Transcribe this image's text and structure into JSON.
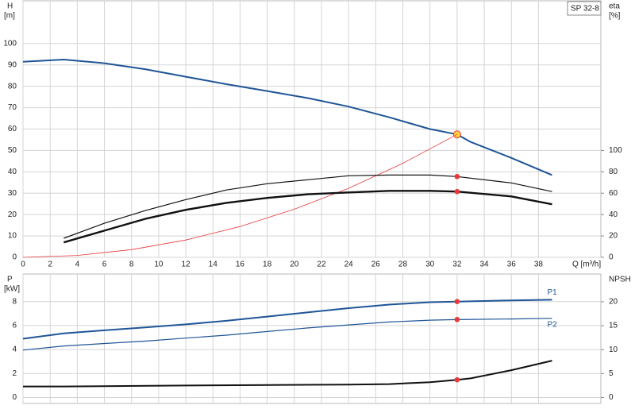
{
  "chart_data": [
    {
      "type": "line",
      "title": "SP 32-8",
      "ylabel": "H",
      "ylabel_unit": "[m]",
      "y2label": "eta",
      "y2label_unit": "[%]",
      "xlabel": "Q [m³/h]",
      "xlim": [
        0,
        42.6
      ],
      "xticks": [
        0,
        2,
        4,
        6,
        8,
        10,
        12,
        14,
        16,
        18,
        20,
        22,
        24,
        26,
        28,
        30,
        32,
        34,
        36,
        38
      ],
      "ylim": [
        0,
        120
      ],
      "yticks": [
        0,
        10,
        20,
        30,
        40,
        50,
        60,
        70,
        80,
        90,
        100
      ],
      "y2lim": [
        0,
        240
      ],
      "y2ticks": [
        0,
        20,
        40,
        60,
        80,
        100
      ],
      "grid": true,
      "duty_x": 32,
      "series": [
        {
          "color": "#1f5596",
          "width": 2,
          "marker": "operating",
          "x": [
            0,
            3,
            6,
            9,
            12,
            15,
            18,
            21,
            24,
            27,
            30,
            32,
            33,
            36,
            39
          ],
          "values": [
            91.5,
            92.5,
            90.8,
            88,
            84.5,
            81,
            77.8,
            74.5,
            70.5,
            65.5,
            60,
            57.5,
            54,
            46.5,
            38.5
          ]
        },
        {
          "color": "#e8383a",
          "width": 0.8,
          "x": [
            0,
            4,
            8,
            12,
            16,
            20,
            24,
            28,
            32
          ],
          "values": [
            0,
            0.9,
            3.6,
            8.1,
            14.4,
            22.5,
            32.3,
            44,
            57.5
          ]
        },
        {
          "color": "#111111",
          "width": 1.2,
          "axis": "y2",
          "marker": "dot",
          "x": [
            3,
            6,
            9,
            12,
            15,
            18,
            21,
            24,
            27,
            30,
            32,
            36,
            39
          ],
          "values": [
            17.8,
            31.9,
            43.7,
            54,
            63,
            68.9,
            72.6,
            76.3,
            77,
            77,
            75.6,
            69.6,
            61.5
          ]
        },
        {
          "color": "#111111",
          "width": 2.4,
          "axis": "y2",
          "marker": "dot",
          "x": [
            3,
            6,
            9,
            12,
            15,
            18,
            21,
            24,
            27,
            30,
            32,
            36,
            39
          ],
          "values": [
            14,
            25,
            36,
            44.4,
            51,
            55.6,
            59,
            60.7,
            62.2,
            62.2,
            61.5,
            57,
            49.6
          ]
        }
      ]
    },
    {
      "type": "line",
      "ylabel": "P",
      "ylabel_unit": "[kW]",
      "y2label": "NPSH",
      "xlim": [
        0,
        42.6
      ],
      "xticks": [
        0,
        2,
        4,
        6,
        8,
        10,
        12,
        14,
        16,
        18,
        20,
        22,
        24,
        26,
        28,
        30,
        32,
        34,
        36,
        38
      ],
      "xtick_labels": false,
      "ylim": [
        -0.5,
        10.3
      ],
      "yticks": [
        0,
        2,
        4,
        6,
        8
      ],
      "y2lim": [
        -1.25,
        25.8
      ],
      "y2ticks": [
        0,
        5,
        10,
        15,
        20
      ],
      "grid": true,
      "duty_x": 32,
      "series": [
        {
          "name": "P1",
          "color": "#1f5596",
          "width": 2,
          "marker": "dot",
          "x": [
            0,
            3,
            6,
            9,
            12,
            15,
            18,
            21,
            24,
            27,
            30,
            32,
            36,
            39
          ],
          "values": [
            4.9,
            5.35,
            5.6,
            5.85,
            6.1,
            6.4,
            6.75,
            7.1,
            7.45,
            7.75,
            7.95,
            8.0,
            8.1,
            8.15
          ]
        },
        {
          "name": "P2",
          "color": "#1f5596",
          "width": 1.2,
          "marker": "dot",
          "x": [
            0,
            3,
            6,
            9,
            12,
            15,
            18,
            21,
            24,
            27,
            30,
            32,
            36,
            39
          ],
          "values": [
            3.95,
            4.3,
            4.5,
            4.7,
            4.95,
            5.2,
            5.5,
            5.8,
            6.05,
            6.3,
            6.45,
            6.5,
            6.55,
            6.6
          ]
        },
        {
          "color": "#111111",
          "width": 2,
          "axis": "y2",
          "marker": "dot",
          "x": [
            0,
            3,
            12,
            24,
            27,
            30,
            32,
            33,
            36,
            39
          ],
          "values": [
            2.3,
            2.3,
            2.5,
            2.7,
            2.8,
            3.2,
            3.7,
            4,
            5.7,
            7.7
          ]
        }
      ]
    }
  ]
}
